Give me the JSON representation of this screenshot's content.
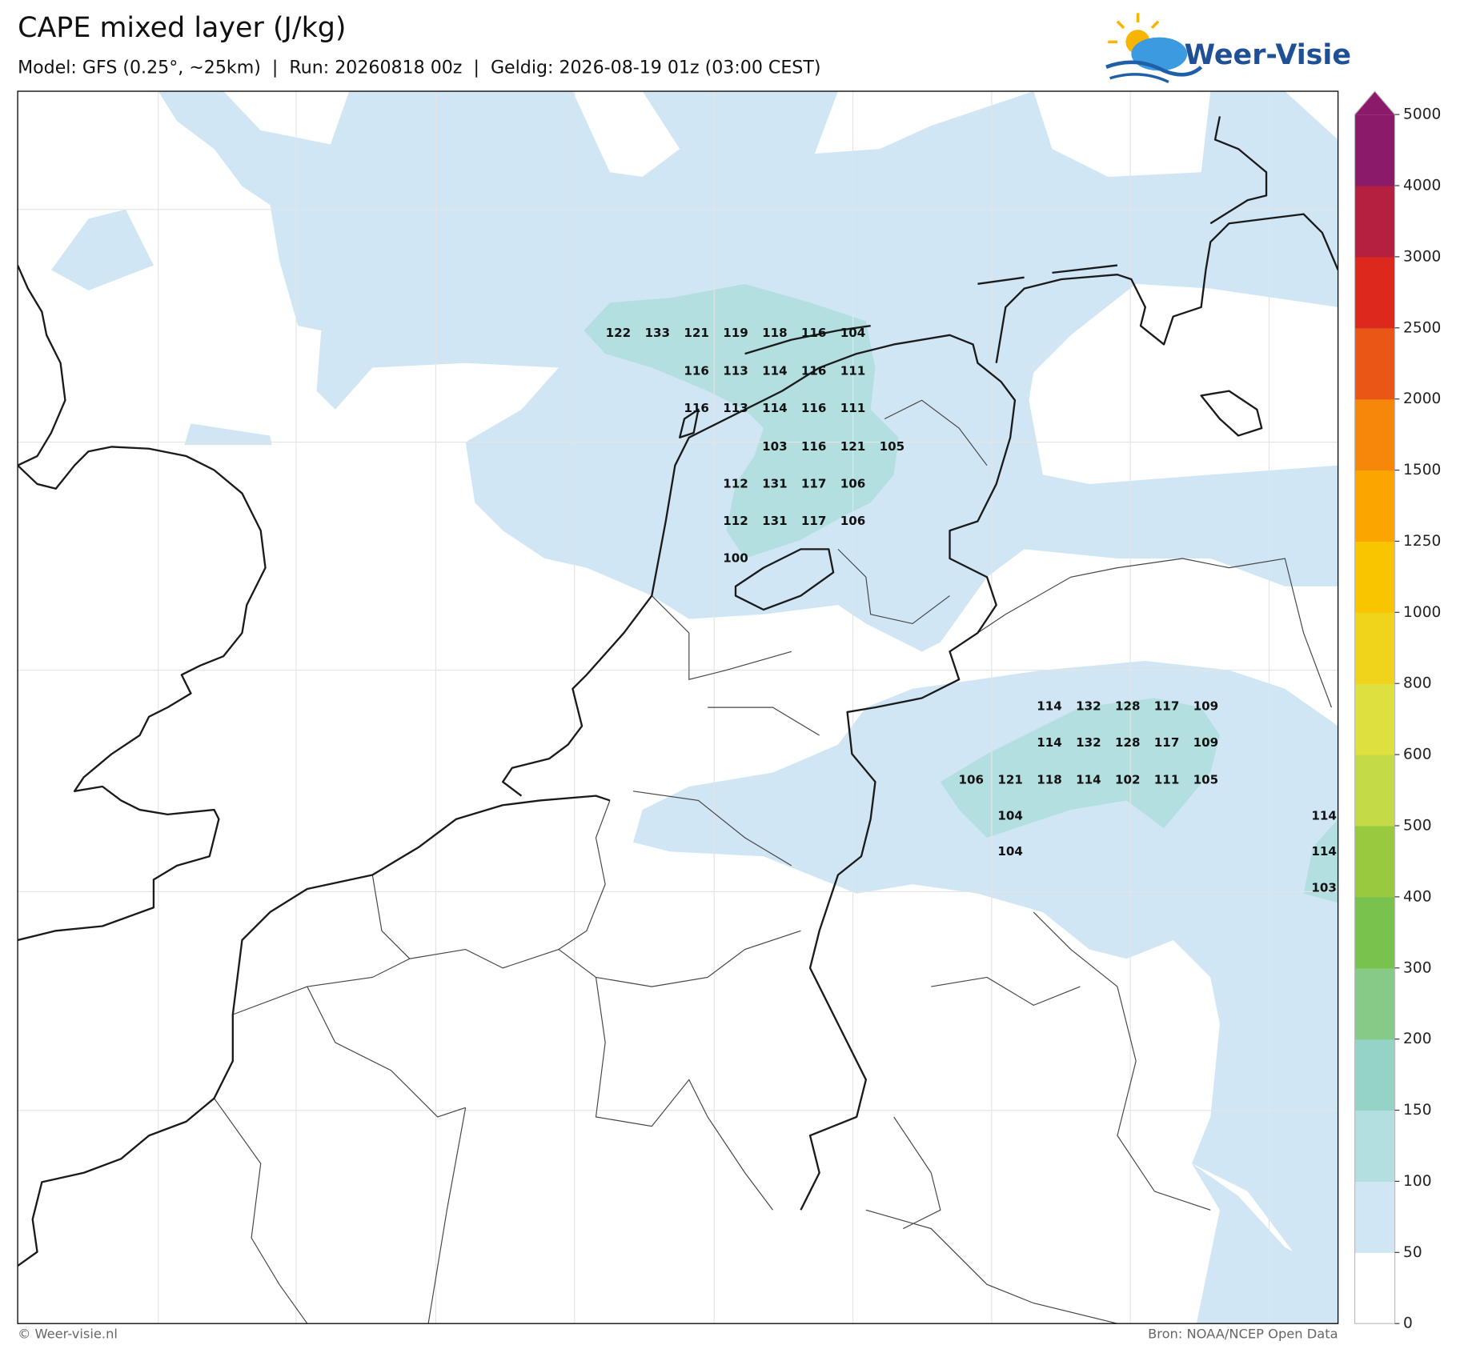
{
  "header": {
    "title": "CAPE mixed layer (J/kg)",
    "subtitle": "Model: GFS (0.25°, ~25km)  |  Run: 20260818 00z  |  Geldig: 2026-08-19 01z (03:00 CEST)",
    "logo": "Weer-Visie"
  },
  "map": {
    "values": [
      122,
      133,
      121,
      119,
      118,
      116,
      104,
      116,
      113,
      114,
      116,
      111,
      116,
      113,
      114,
      116,
      111,
      103,
      116,
      121,
      105,
      112,
      131,
      117,
      106,
      112,
      131,
      117,
      106,
      100,
      114,
      132,
      128,
      117,
      109,
      114,
      132,
      128,
      117,
      109,
      106,
      121,
      118,
      114,
      102,
      111,
      105,
      104,
      114,
      104,
      114,
      103
    ]
  },
  "colorbar": {
    "ticks": [
      0,
      50,
      100,
      150,
      200,
      300,
      400,
      500,
      600,
      800,
      1000,
      1250,
      1500,
      2000,
      2500,
      3000,
      4000,
      5000
    ],
    "colors": [
      "#ffffff",
      "#d0e6f5",
      "#b4dfe1",
      "#95d3c7",
      "#87ca87",
      "#7ac24e",
      "#98c93f",
      "#c4da46",
      "#dde03e",
      "#f0d41b",
      "#f9c400",
      "#fba600",
      "#f7870a",
      "#ea5616",
      "#dc281d",
      "#b51f40",
      "#8b1a6a"
    ],
    "over_color": "#8b1a6a"
  },
  "footer": {
    "credit": "© Weer-visie.nl",
    "source": "Bron: NOAA/NCEP Open Data"
  }
}
